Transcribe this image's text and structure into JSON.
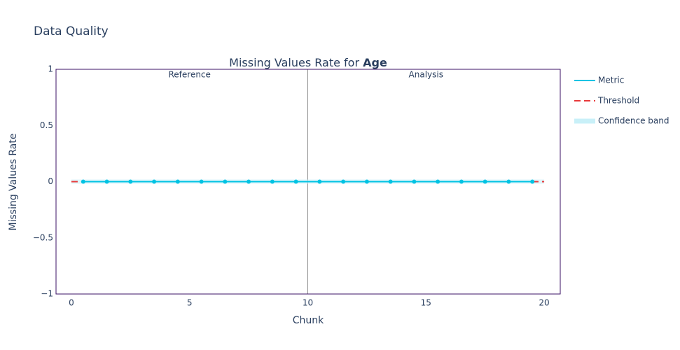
{
  "page_title": "Data Quality",
  "chart_data": {
    "type": "line",
    "title": "Missing Values Rate for",
    "title_emphasis": "Age",
    "x_label": "Chunk",
    "y_label": "Missing Values Rate",
    "xlim": [
      -0.65,
      20.68
    ],
    "ylim": [
      -1,
      1
    ],
    "xticks": [
      0,
      5,
      10,
      15,
      20
    ],
    "yticks": [
      {
        "value": -1,
        "label": "−1"
      },
      {
        "value": -0.5,
        "label": "−0.5"
      },
      0,
      0.5,
      1
    ],
    "divider_x": 10,
    "annotations": [
      {
        "text": "Reference",
        "x": 5
      },
      {
        "text": "Analysis",
        "x": 15
      }
    ],
    "series": [
      {
        "name": "Metric",
        "color": "#00c3e3",
        "style": "solid",
        "markers": true,
        "x": [
          0.5,
          1.5,
          2.5,
          3.5,
          4.5,
          5.5,
          6.5,
          7.5,
          8.5,
          9.5,
          10.5,
          11.5,
          12.5,
          13.5,
          14.5,
          15.5,
          16.5,
          17.5,
          18.5,
          19.5
        ],
        "values": [
          0,
          0,
          0,
          0,
          0,
          0,
          0,
          0,
          0,
          0,
          0,
          0,
          0,
          0,
          0,
          0,
          0,
          0,
          0,
          0
        ]
      },
      {
        "name": "Threshold",
        "color": "#e8393a",
        "style": "dash",
        "markers": false,
        "x": [
          0,
          20
        ],
        "values": [
          0,
          0
        ]
      },
      {
        "name": "Confidence band",
        "color": "#c9f0f8",
        "style": "band",
        "markers": false,
        "x": [
          0,
          20
        ],
        "values": [
          0,
          0
        ]
      }
    ]
  }
}
